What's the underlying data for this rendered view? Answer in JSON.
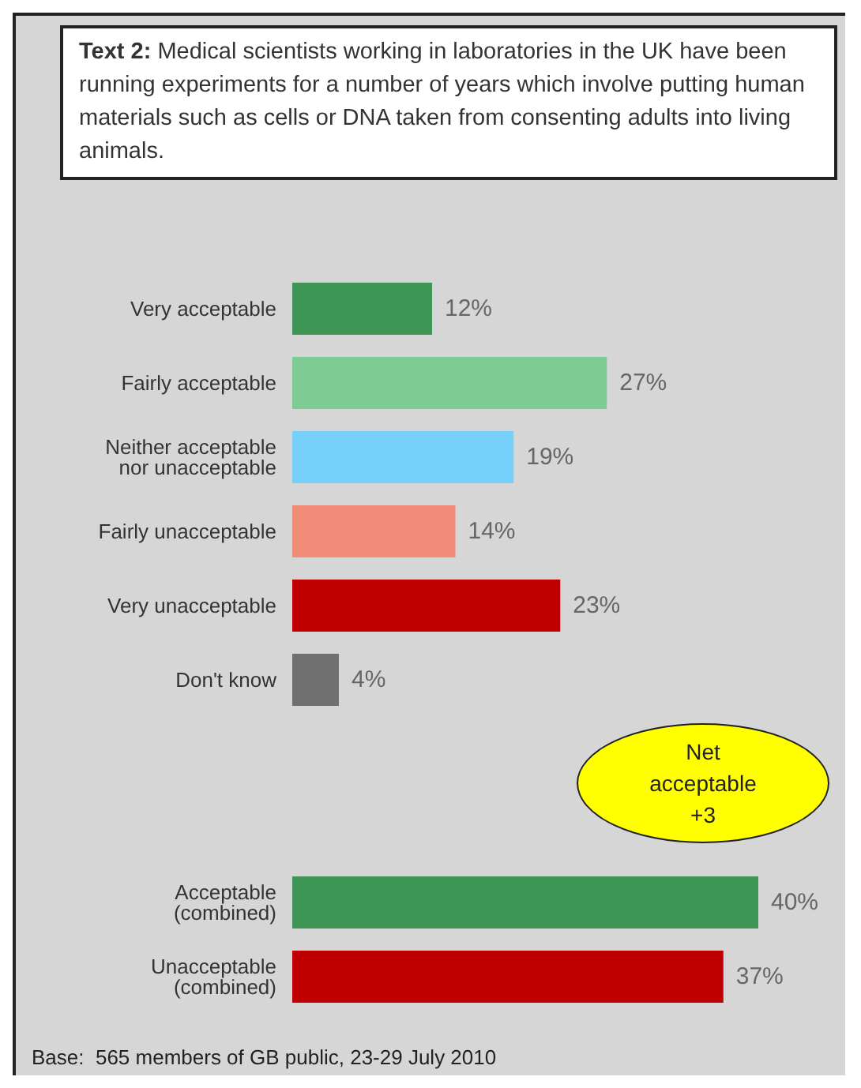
{
  "chart_data": {
    "type": "bar",
    "orientation": "horizontal",
    "title": "Text 2: Medical scientists working in laboratories in the UK have been running experiments for a number of years which involve putting human materials such as cells or DNA taken from consenting adults into living animals.",
    "categories": [
      "Very acceptable",
      "Fairly acceptable",
      "Neither acceptable\nnor unacceptable",
      "Fairly unacceptable",
      "Very unacceptable",
      "Don't know",
      null,
      null,
      "Acceptable\n(combined)",
      "Unacceptable\n(combined)"
    ],
    "values": [
      12,
      27,
      19,
      14,
      23,
      4,
      null,
      null,
      40,
      37
    ],
    "colors": [
      "#3d9656",
      "#7ecc94",
      "#77d0fa",
      "#f08c78",
      "#c00000",
      "#707070",
      null,
      null,
      "#3d9656",
      "#c00000"
    ],
    "value_labels": [
      "12%",
      "27%",
      "19%",
      "14%",
      "23%",
      "4%",
      null,
      null,
      "40%",
      "37%"
    ],
    "annotations": [
      "Net\nacceptable\n+3",
      "Base:  565 members of GB public, 23-29 July 2010"
    ]
  }
}
